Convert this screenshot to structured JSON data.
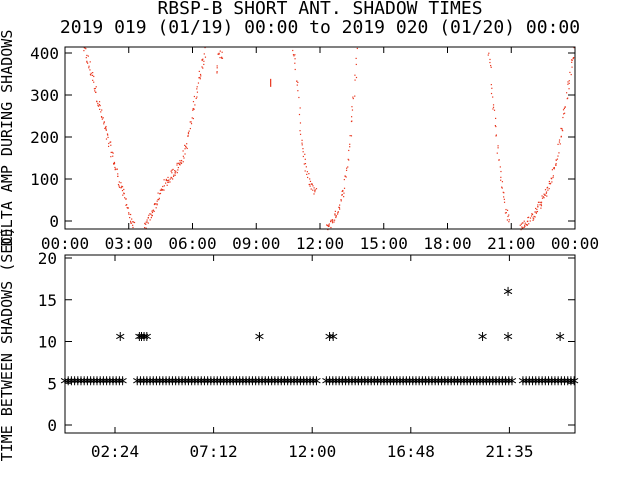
{
  "title": "RBSP-B SHORT ANT. SHADOW TIMES",
  "subtitle": "2019 019 (01/19) 00:00 to 2019 020 (01/20) 00:00",
  "colors": {
    "trace": "#e8341c",
    "axis": "#000000",
    "background": "#ffffff"
  },
  "chart_data": [
    {
      "type": "scatter",
      "ylabel": "DELTA AMP DURING SHADOWS",
      "xlim_hours": [
        0,
        24
      ],
      "ylim": [
        0,
        400
      ],
      "xtick_labels": [
        "00:00",
        "03:00",
        "06:00",
        "09:00",
        "12:00",
        "15:00",
        "18:00",
        "21:00",
        "00:00"
      ],
      "ytick_labels": [
        "0",
        "100",
        "200",
        "300",
        "400"
      ],
      "series": [
        {
          "segments": [
            {
              "x": [
                0.85,
                1.3,
                1.7,
                2.1,
                2.5,
                2.9,
                3.05,
                3.25
              ],
              "y": [
                400,
                330,
                250,
                180,
                110,
                55,
                20,
                5
              ]
            },
            {
              "x": [
                3.7,
                3.85,
                4.0,
                4.3,
                4.6,
                5.0,
                5.4,
                5.7,
                6.0,
                6.3,
                6.6
              ],
              "y": [
                5,
                15,
                30,
                60,
                95,
                120,
                145,
                185,
                260,
                340,
                400
              ]
            },
            {
              "x": [
                7.1,
                7.4
              ],
              "y": [
                360,
                395
              ]
            },
            {
              "x": [
                9.65
              ],
              "y": [
                330
              ]
            },
            {
              "x": [
                10.7,
                10.9,
                11.1,
                11.35,
                11.6,
                11.8
              ],
              "y": [
                400,
                320,
                200,
                120,
                90,
                80
              ]
            },
            {
              "x": [
                12.3,
                12.5,
                12.8,
                13.1,
                13.3,
                13.55,
                13.75
              ],
              "y": [
                5,
                15,
                40,
                90,
                150,
                280,
                400
              ]
            },
            {
              "x": [
                19.9,
                20.1,
                20.3,
                20.5,
                20.7,
                20.9
              ],
              "y": [
                400,
                300,
                200,
                110,
                50,
                10
              ]
            },
            {
              "x": [
                21.4,
                21.7,
                22.0,
                22.4,
                22.8,
                23.1,
                23.4,
                23.7,
                23.95
              ],
              "y": [
                5,
                15,
                30,
                60,
                100,
                150,
                230,
                330,
                400
              ]
            }
          ]
        }
      ]
    },
    {
      "type": "scatter",
      "ylabel": "TIME BETWEEN SHADOWS (SEC)",
      "xlim_hours": [
        0,
        24
      ],
      "ylim": [
        0,
        20
      ],
      "xtick_labels": [
        "02:24",
        "07:12",
        "12:00",
        "16:48",
        "21:35"
      ],
      "ytick_labels": [
        "0",
        "5",
        "10",
        "15",
        "20"
      ],
      "series": [
        {
          "baseline_value": 5.3,
          "baseline_ranges": [
            [
              0.0,
              2.75
            ],
            [
              3.4,
              11.9
            ],
            [
              12.3,
              21.15
            ],
            [
              21.55,
              24.0
            ]
          ],
          "points": [
            {
              "x": 2.6,
              "y": 10.6
            },
            {
              "x": 3.5,
              "y": 10.6
            },
            {
              "x": 3.6,
              "y": 10.6
            },
            {
              "x": 3.72,
              "y": 10.6
            },
            {
              "x": 3.85,
              "y": 10.6
            },
            {
              "x": 9.15,
              "y": 10.6
            },
            {
              "x": 12.45,
              "y": 10.6
            },
            {
              "x": 12.62,
              "y": 10.6
            },
            {
              "x": 19.65,
              "y": 10.6
            },
            {
              "x": 20.85,
              "y": 16.0
            },
            {
              "x": 20.85,
              "y": 10.6
            },
            {
              "x": 23.3,
              "y": 10.6
            }
          ]
        }
      ]
    }
  ]
}
